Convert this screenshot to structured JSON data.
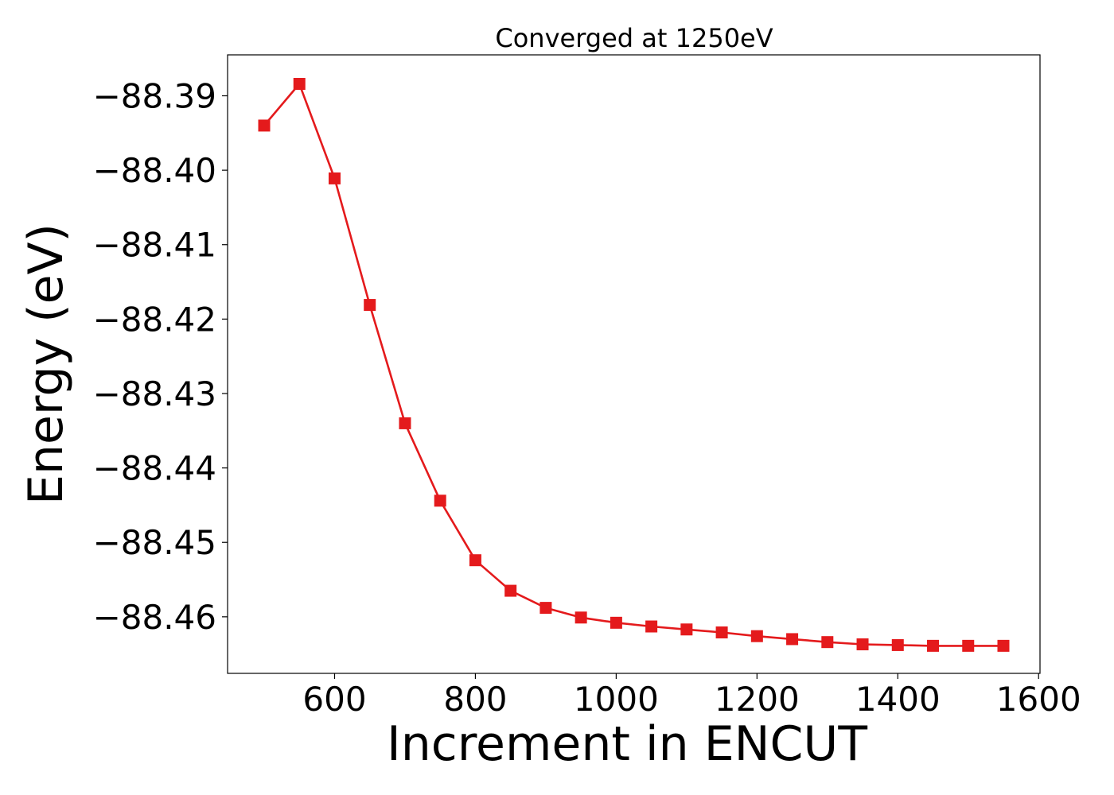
{
  "chart_data": {
    "type": "line",
    "title": "Converged at 1250eV",
    "xlabel": "Increment in ENCUT",
    "ylabel": "Energy (eV)",
    "xlim": [
      448,
      1602
    ],
    "ylim": [
      -88.4676,
      -88.3845
    ],
    "x_ticks": [
      600,
      800,
      1000,
      1200,
      1400,
      1600
    ],
    "x_tick_labels": [
      "600",
      "800",
      "1000",
      "1200",
      "1400",
      "1600"
    ],
    "y_ticks": [
      -88.39,
      -88.4,
      -88.41,
      -88.42,
      -88.43,
      -88.44,
      -88.45,
      -88.46
    ],
    "y_tick_labels": [
      "−88.39",
      "−88.40",
      "−88.41",
      "−88.42",
      "−88.43",
      "−88.44",
      "−88.45",
      "−88.46"
    ],
    "grid": false,
    "legend": "none",
    "series": [
      {
        "color": "#e41a1c",
        "marker": "square",
        "x": [
          500,
          550,
          600,
          650,
          700,
          750,
          800,
          850,
          900,
          950,
          1000,
          1050,
          1100,
          1150,
          1200,
          1250,
          1300,
          1350,
          1400,
          1450,
          1500,
          1550
        ],
        "y": [
          -88.394,
          -88.3884,
          -88.4011,
          -88.4181,
          -88.434,
          -88.4444,
          -88.4524,
          -88.4565,
          -88.4588,
          -88.4601,
          -88.4608,
          -88.4613,
          -88.4617,
          -88.4621,
          -88.4626,
          -88.463,
          -88.4634,
          -88.4637,
          -88.4638,
          -88.4639,
          -88.4639,
          -88.4639
        ]
      }
    ]
  }
}
